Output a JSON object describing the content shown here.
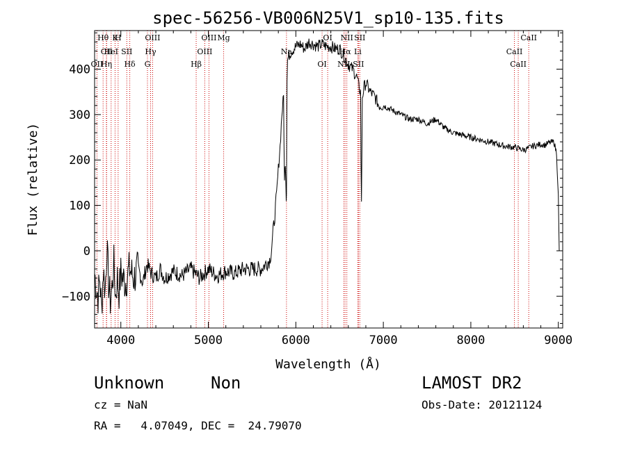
{
  "chart_data": {
    "type": "line",
    "title": "spec-56256-VB006N25V1_sp10-135.fits",
    "xlabel": "Wavelength (Å)",
    "ylabel": "Flux (relative)",
    "xlim": [
      3700,
      9050
    ],
    "ylim": [
      -170,
      485
    ],
    "xticks": [
      4000,
      5000,
      6000,
      7000,
      8000,
      9000
    ],
    "yticks": [
      -100,
      0,
      100,
      200,
      300,
      400
    ],
    "grid": false,
    "line_color": "#000000",
    "marker_color": "#cc0000",
    "series": [
      {
        "x": [
          3700,
          3720,
          3740,
          3760,
          3780,
          3800,
          3820,
          3840,
          3860,
          3880,
          3900,
          3920,
          3940,
          3960,
          3980,
          4000,
          4050,
          4100,
          4150,
          4200,
          4250,
          4300,
          4350,
          4400,
          4450,
          4500,
          4600,
          4700,
          4800,
          4900,
          5000,
          5100,
          5200,
          5300,
          5400,
          5500,
          5600,
          5650,
          5700,
          5720,
          5740,
          5760,
          5780,
          5800,
          5820,
          5840,
          5860,
          5870,
          5880,
          5890,
          5893,
          5896,
          5900,
          5905,
          5920,
          5950,
          6000,
          6050,
          6100,
          6150,
          6200,
          6250,
          6300,
          6350,
          6400,
          6450,
          6500,
          6550,
          6600,
          6650,
          6700,
          6720,
          6740,
          6745,
          6750,
          6760,
          6780,
          6800,
          6850,
          6900,
          6950,
          7000,
          7100,
          7200,
          7300,
          7400,
          7500,
          7600,
          7700,
          7800,
          7900,
          8000,
          8100,
          8200,
          8300,
          8400,
          8500,
          8550,
          8600,
          8650,
          8700,
          8750,
          8800,
          8850,
          8900,
          8950,
          8980,
          9000,
          9010
        ],
        "y": [
          -50,
          -80,
          -100,
          -60,
          -130,
          -40,
          -90,
          10,
          -70,
          -110,
          -80,
          -30,
          -100,
          -60,
          -90,
          -50,
          -70,
          -40,
          -60,
          -40,
          -70,
          -30,
          -50,
          -60,
          -40,
          -60,
          -45,
          -55,
          -40,
          -60,
          -40,
          -55,
          -45,
          -50,
          -40,
          -40,
          -40,
          -30,
          -20,
          0,
          40,
          80,
          120,
          180,
          230,
          300,
          340,
          150,
          200,
          120,
          130,
          250,
          380,
          420,
          430,
          440,
          450,
          455,
          445,
          460,
          455,
          450,
          455,
          450,
          450,
          445,
          445,
          430,
          410,
          400,
          380,
          360,
          350,
          200,
          100,
          340,
          360,
          370,
          350,
          340,
          320,
          320,
          310,
          300,
          290,
          290,
          280,
          290,
          270,
          260,
          255,
          250,
          245,
          240,
          235,
          230,
          228,
          225,
          222,
          225,
          230,
          232,
          235,
          233,
          238,
          240,
          215,
          120,
          0
        ]
      }
    ],
    "lines": [
      {
        "label": "Hθ",
        "x": 3797
      },
      {
        "label": "CII",
        "x": 3838
      },
      {
        "label": "OII",
        "x": 3727
      },
      {
        "label": "K",
        "x": 3934
      },
      {
        "label": "HeI",
        "x": 3889
      },
      {
        "label": "Hη",
        "x": 3835
      },
      {
        "label": "H",
        "x": 3969
      },
      {
        "label": "SII",
        "x": 4068
      },
      {
        "label": "Hδ",
        "x": 4102
      },
      {
        "label": "OIII",
        "x": 4363
      },
      {
        "label": "Hγ",
        "x": 4340
      },
      {
        "label": "G",
        "x": 4304
      },
      {
        "label": "OIII",
        "x": 5007
      },
      {
        "label": "OIII",
        "x": 4959
      },
      {
        "label": "Hβ",
        "x": 4861
      },
      {
        "label": "Mg",
        "x": 5175
      },
      {
        "label": "Na",
        "x": 5893
      },
      {
        "label": "OI",
        "x": 6300
      },
      {
        "label": "OI",
        "x": 6364
      },
      {
        "label": "Hα",
        "x": 6563
      },
      {
        "label": "NII",
        "x": 6548
      },
      {
        "label": "NII",
        "x": 6583
      },
      {
        "label": "Li",
        "x": 6708
      },
      {
        "label": "SII",
        "x": 6716
      },
      {
        "label": "SII",
        "x": 6731
      },
      {
        "label": "CaII",
        "x": 8498
      },
      {
        "label": "CaII",
        "x": 8542
      },
      {
        "label": "CaII",
        "x": 8662
      }
    ]
  },
  "footer": {
    "class_text": "Unknown",
    "subclass_text": "Non",
    "survey": "LAMOST DR2",
    "cz": "cz = NaN",
    "obs_date": "Obs-Date: 20121124",
    "coords": "RA =   4.07049, DEC =  24.79070"
  }
}
